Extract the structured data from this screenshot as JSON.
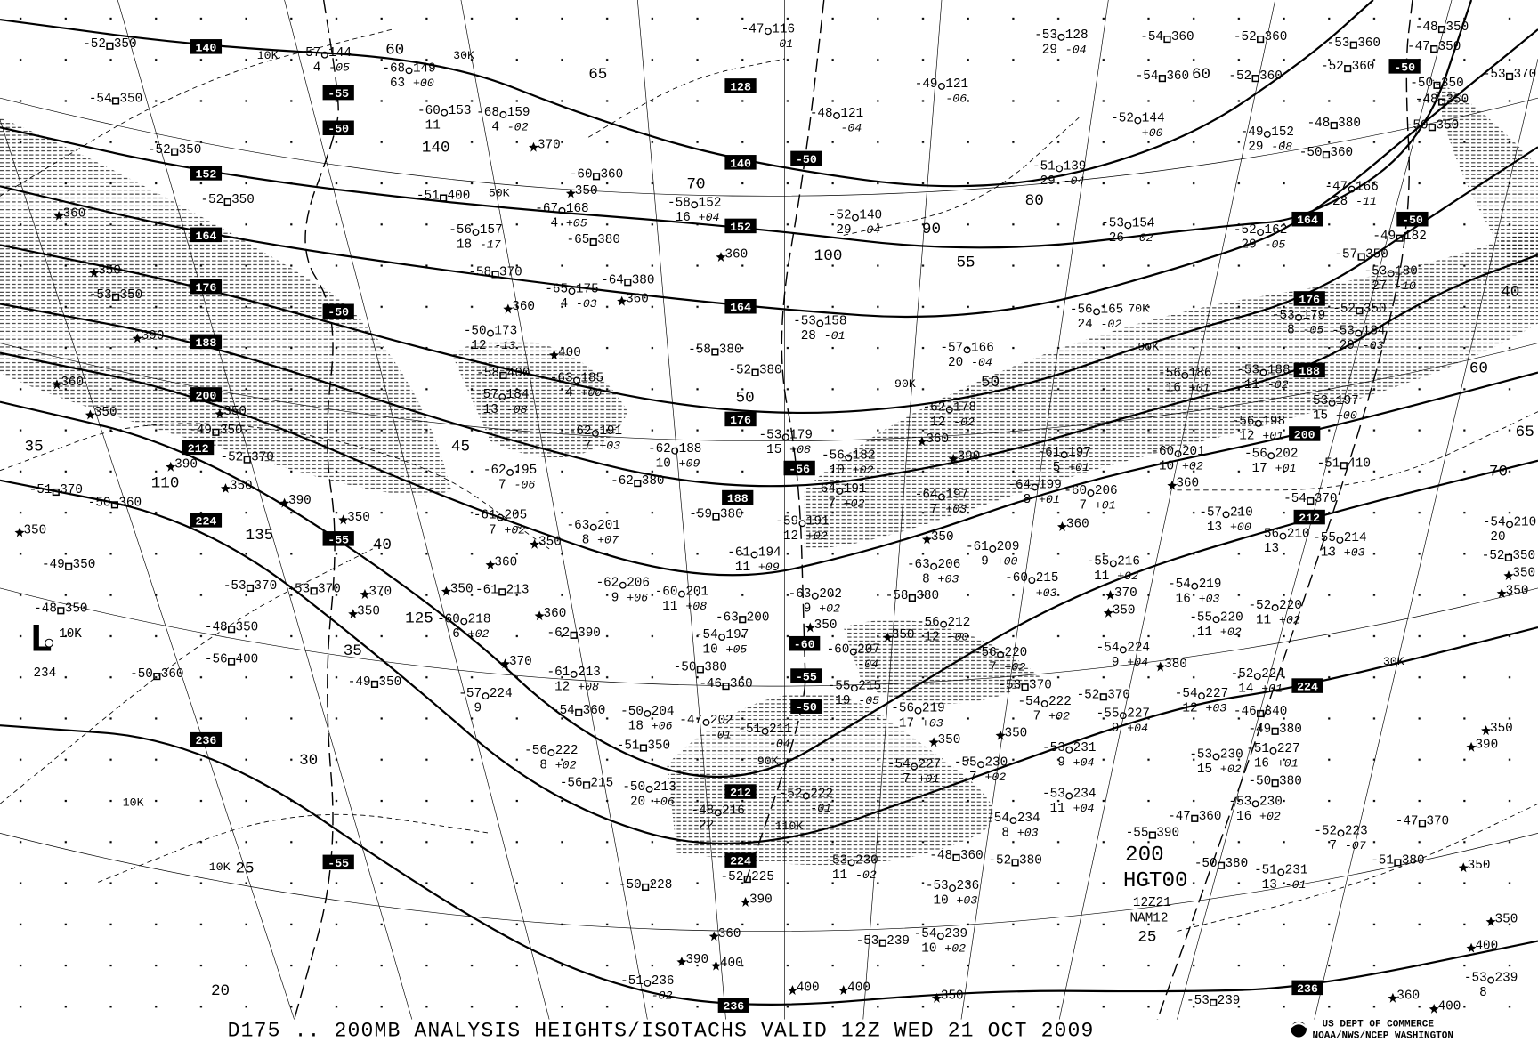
{
  "title": "D175 .. 200MB   ANALYSIS  HEIGHTS/ISOTACHS VALID 12Z WED 21 OCT 2009",
  "product_label": {
    "level": "200",
    "product": "HGT00",
    "time": "12Z21",
    "model": "NAM12"
  },
  "agency": {
    "line1": "US DEPT OF COMMERCE",
    "line2": "NOAA/NWS/NCEP WASHINGTON",
    "logo": "noaa-logo"
  },
  "low_center": {
    "symbol": "L",
    "speed": "10K",
    "height": "234"
  },
  "boxed_heights": [
    "140",
    "152",
    "164",
    "176",
    "188",
    "200",
    "212",
    "224",
    "236",
    "128",
    "140",
    "152",
    "164",
    "176",
    "188",
    "212",
    "224",
    "236",
    "164",
    "176",
    "188",
    "200",
    "212",
    "224",
    "236"
  ],
  "boxed_temps": [
    "-55",
    "-50",
    "-50",
    "-55",
    "-55",
    "-50",
    "-56",
    "-60",
    "-55",
    "-50",
    "-50",
    "-50"
  ],
  "isotach_labels": [
    "65",
    "60",
    "140",
    "100",
    "90",
    "55",
    "125",
    "135",
    "40",
    "35",
    "30",
    "25",
    "20",
    "45",
    "50",
    "70",
    "80",
    "60",
    "65",
    "70",
    "40",
    "25",
    "35",
    "110",
    "60",
    "50"
  ],
  "wind_labels": [
    "30K",
    "50K",
    "10K",
    "70K",
    "90K",
    "90K",
    "90K",
    "110K",
    "10K",
    "10K",
    "30K"
  ],
  "stations": [
    {
      "t": "-52",
      "h": "350"
    },
    {
      "t": "-54",
      "h": "350"
    },
    {
      "t": "-52",
      "h": "350"
    },
    {
      "t": "-52",
      "h": "350"
    },
    {
      "h": "360"
    },
    {
      "h": "350"
    },
    {
      "t": "-53",
      "h": "350"
    },
    {
      "h": "390"
    },
    {
      "h": "360"
    },
    {
      "h": "350"
    },
    {
      "h": "350"
    },
    {
      "t": "-49",
      "h": "350"
    },
    {
      "t": "-52",
      "h": "370"
    },
    {
      "h": "390"
    },
    {
      "h": "350"
    },
    {
      "t": "-51",
      "h": "370"
    },
    {
      "t": "-50",
      "h": "360"
    },
    {
      "h": "390"
    },
    {
      "h": "350"
    },
    {
      "h": "350"
    },
    {
      "t": "-49",
      "h": "350"
    },
    {
      "t": "-53",
      "h": "370"
    },
    {
      "t": "-53",
      "h": "370"
    },
    {
      "h": "370"
    },
    {
      "h": "350"
    },
    {
      "t": "-48",
      "h": "350"
    },
    {
      "t": "-48",
      "h": "350"
    },
    {
      "t": "-56",
      "h": "400"
    },
    {
      "t": "-50",
      "h": "360"
    },
    {
      "t": "-49",
      "h": "350"
    },
    {
      "t": "-57",
      "h": "144",
      "dd": "4",
      "c": "-05"
    },
    {
      "t": "-68",
      "h": "149",
      "dd": "63",
      "c": "+00"
    },
    {
      "t": "-60",
      "h": "153",
      "dd": "11"
    },
    {
      "t": "-68",
      "h": "159",
      "dd": "4",
      "c": "-02"
    },
    {
      "t": "-51",
      "h": "400"
    },
    {
      "t": "-56",
      "h": "157",
      "dd": "18",
      "c": "-17"
    },
    {
      "t": "-58",
      "h": "370"
    },
    {
      "h": "360"
    },
    {
      "t": "-50",
      "h": "173",
      "dd": "12",
      "c": "-13"
    },
    {
      "t": "-58",
      "h": "400"
    },
    {
      "t": "-57",
      "h": "184",
      "dd": "13",
      "c": "-08"
    },
    {
      "t": "-63",
      "h": "185",
      "dd": "4",
      "c": "+00"
    },
    {
      "t": "-67",
      "h": "168",
      "dd": "4",
      "c": "+05"
    },
    {
      "t": "-65",
      "h": "380"
    },
    {
      "t": "-60",
      "h": "360"
    },
    {
      "h": "350"
    },
    {
      "h": "370"
    },
    {
      "t": "-64",
      "h": "380"
    },
    {
      "t": "-65",
      "h": "175",
      "dd": "4",
      "c": "-03"
    },
    {
      "h": "360"
    },
    {
      "h": "400"
    },
    {
      "t": "-62",
      "h": "191",
      "dd": "7",
      "c": "+03"
    },
    {
      "t": "-62",
      "h": "195",
      "dd": "7",
      "c": "-06"
    },
    {
      "t": "-62",
      "h": "380"
    },
    {
      "t": "-61",
      "h": "205",
      "dd": "7",
      "c": "+02"
    },
    {
      "h": "350"
    },
    {
      "h": "360"
    },
    {
      "t": "-61",
      "h": "213"
    },
    {
      "h": "350"
    },
    {
      "t": "-60",
      "h": "218",
      "dd": "6",
      "c": "+02"
    },
    {
      "t": "-63",
      "h": "201",
      "dd": "8",
      "c": "+07"
    },
    {
      "t": "-62",
      "h": "206",
      "dd": "9",
      "c": "+06"
    },
    {
      "t": "-62",
      "h": "390"
    },
    {
      "h": "370"
    },
    {
      "t": "-61",
      "h": "213",
      "dd": "12",
      "c": "+08"
    },
    {
      "t": "-54",
      "h": "360"
    },
    {
      "t": "-57",
      "h": "224",
      "dd": "9"
    },
    {
      "h": "360"
    },
    {
      "t": "-60",
      "h": "201",
      "dd": "11",
      "c": "+08"
    },
    {
      "t": "-62",
      "h": "188",
      "dd": "10",
      "c": "+09"
    },
    {
      "t": "-53",
      "h": "179",
      "dd": "15",
      "c": "+08"
    },
    {
      "t": "-59",
      "h": "380"
    },
    {
      "t": "-61",
      "h": "194",
      "dd": "11",
      "c": "+09"
    },
    {
      "t": "-59",
      "h": "191",
      "dd": "12",
      "c": "+02"
    },
    {
      "t": "-54",
      "h": "197",
      "dd": "10",
      "c": "+05"
    },
    {
      "t": "-50",
      "h": "380"
    },
    {
      "t": "-46",
      "h": "360"
    },
    {
      "t": "-63",
      "h": "200"
    },
    {
      "h": "350"
    },
    {
      "t": "-63",
      "h": "202",
      "dd": "9",
      "c": "+02"
    },
    {
      "t": "-64",
      "h": "191",
      "dd": "7",
      "c": "+02"
    },
    {
      "t": "-56",
      "h": "182",
      "dd": "10",
      "c": "+02"
    },
    {
      "t": "-58",
      "h": "380"
    },
    {
      "t": "-52",
      "h": "380"
    },
    {
      "h": "360"
    },
    {
      "t": "-58",
      "h": "152",
      "dd": "16",
      "c": "+04"
    },
    {
      "t": "-47",
      "h": "116",
      "c": "-01"
    },
    {
      "t": "-48",
      "h": "121",
      "c": "-04"
    },
    {
      "t": "-52",
      "h": "140",
      "dd": "29",
      "c": "-04"
    },
    {
      "t": "-53",
      "h": "158",
      "dd": "28",
      "c": "-01"
    },
    {
      "t": "-49",
      "h": "121",
      "c": "-06"
    },
    {
      "t": "-53",
      "h": "128",
      "dd": "29",
      "c": "-04"
    },
    {
      "t": "-54",
      "h": "360"
    },
    {
      "t": "-54",
      "h": "360"
    },
    {
      "t": "-52",
      "h": "360"
    },
    {
      "t": "-52",
      "h": "360"
    },
    {
      "t": "-53",
      "h": "360"
    },
    {
      "t": "-52",
      "h": "360"
    },
    {
      "t": "-48",
      "h": "350"
    },
    {
      "t": "-47",
      "h": "350"
    },
    {
      "t": "-50",
      "h": "350"
    },
    {
      "t": "-48",
      "h": "350"
    },
    {
      "t": "-50",
      "h": "350"
    },
    {
      "t": "-53",
      "h": "370"
    },
    {
      "t": "-52",
      "h": "144",
      "c": "+00"
    },
    {
      "t": "-51",
      "h": "139",
      "dd": "29",
      "c": "-04"
    },
    {
      "t": "-49",
      "h": "152",
      "dd": "29",
      "c": "-08"
    },
    {
      "t": "-48",
      "h": "380"
    },
    {
      "t": "-50",
      "h": "360"
    },
    {
      "t": "-47",
      "h": "166",
      "dd": "28",
      "c": "-11"
    },
    {
      "t": "-53",
      "h": "154",
      "dd": "26",
      "c": "-02"
    },
    {
      "t": "-52",
      "h": "162",
      "dd": "29",
      "c": "-05"
    },
    {
      "t": "-49",
      "h": "182"
    },
    {
      "t": "-57",
      "h": "350"
    },
    {
      "t": "-53",
      "h": "180",
      "dd": "27",
      "c": "-10"
    },
    {
      "t": "-52",
      "h": "350"
    },
    {
      "t": "-53",
      "h": "179",
      "dd": "8",
      "c": "-05"
    },
    {
      "t": "-53",
      "h": "184",
      "dd": "29",
      "c": "-03"
    },
    {
      "t": "-56",
      "h": "165",
      "dd": "24",
      "c": "-02"
    },
    {
      "t": "-57",
      "h": "166",
      "dd": "20",
      "c": "-04"
    },
    {
      "t": "-56",
      "h": "186",
      "dd": "16",
      "c": "+01"
    },
    {
      "t": "-53",
      "h": "188",
      "dd": "11",
      "c": "-02"
    },
    {
      "t": "-53",
      "h": "197",
      "dd": "15",
      "c": "+00"
    },
    {
      "t": "-56",
      "h": "198",
      "dd": "12",
      "c": "+01"
    },
    {
      "t": "-56",
      "h": "202",
      "dd": "17",
      "c": "+01"
    },
    {
      "t": "-51",
      "h": "410"
    },
    {
      "t": "-54",
      "h": "370"
    },
    {
      "t": "-54",
      "h": "210",
      "dd": "20"
    },
    {
      "t": "-52",
      "h": "350"
    },
    {
      "h": "360"
    },
    {
      "t": "-62",
      "h": "178",
      "dd": "12",
      "c": "-02"
    },
    {
      "h": "390"
    },
    {
      "t": "-61",
      "h": "197",
      "dd": "5",
      "c": "+01"
    },
    {
      "t": "-64",
      "h": "199",
      "dd": "8",
      "c": "+01"
    },
    {
      "t": "-60",
      "h": "206",
      "dd": "7",
      "c": "+01"
    },
    {
      "h": "360"
    },
    {
      "h": "360"
    },
    {
      "t": "-60",
      "h": "201",
      "dd": "10",
      "c": "+02"
    },
    {
      "t": "-57",
      "h": "210",
      "dd": "13",
      "c": "+00"
    },
    {
      "t": "-56",
      "h": "210",
      "dd": "13"
    },
    {
      "t": "-55",
      "h": "214",
      "dd": "13",
      "c": "+03"
    },
    {
      "t": "-64",
      "h": "197",
      "dd": "7",
      "c": "+03"
    },
    {
      "h": "350"
    },
    {
      "t": "-63",
      "h": "206",
      "dd": "8",
      "c": "+03"
    },
    {
      "t": "-61",
      "h": "209",
      "dd": "9",
      "c": "+00"
    },
    {
      "t": "-60",
      "h": "215",
      "c": "+03"
    },
    {
      "t": "-58",
      "h": "380"
    },
    {
      "t": "-55",
      "h": "216",
      "dd": "11",
      "c": "+02"
    },
    {
      "h": "370"
    },
    {
      "t": "-54",
      "h": "219",
      "dd": "16",
      "c": "+03"
    },
    {
      "t": "-55",
      "h": "220",
      "dd": "11",
      "c": "+02"
    },
    {
      "t": "-52",
      "h": "220",
      "dd": "11",
      "c": "+02"
    },
    {
      "h": "350"
    },
    {
      "t": "-56",
      "h": "212",
      "dd": "12",
      "c": "+00"
    },
    {
      "t": "-60",
      "h": "207",
      "c": "-04"
    },
    {
      "t": "-55",
      "h": "215",
      "dd": "19",
      "c": "-05"
    },
    {
      "h": "350"
    },
    {
      "t": "-56",
      "h": "219",
      "dd": "17",
      "c": "+03"
    },
    {
      "t": "-56",
      "h": "220",
      "dd": "7",
      "c": "+02"
    },
    {
      "t": "-53",
      "h": "370"
    },
    {
      "t": "-54",
      "h": "224",
      "dd": "9",
      "c": "+04"
    },
    {
      "h": "380"
    },
    {
      "t": "-54",
      "h": "227",
      "dd": "12",
      "c": "+03"
    },
    {
      "t": "-52",
      "h": "224",
      "dd": "14",
      "c": "+01"
    },
    {
      "t": "-46",
      "h": "340"
    },
    {
      "t": "-49",
      "h": "380"
    },
    {
      "t": "-55",
      "h": "227",
      "dd": "9",
      "c": "+04"
    },
    {
      "t": "-54",
      "h": "222",
      "dd": "7",
      "c": "+02"
    },
    {
      "t": "-52",
      "h": "370"
    },
    {
      "h": "350"
    },
    {
      "h": "350"
    },
    {
      "t": "-53",
      "h": "231",
      "dd": "9",
      "c": "+04"
    },
    {
      "t": "-55",
      "h": "230",
      "dd": "7",
      "c": "+02"
    },
    {
      "t": "-54",
      "h": "227",
      "dd": "7",
      "c": "+01"
    },
    {
      "t": "-53",
      "h": "234",
      "dd": "11",
      "c": "+04"
    },
    {
      "t": "-54",
      "h": "234",
      "dd": "8",
      "c": "+03"
    },
    {
      "t": "-53",
      "h": "230",
      "dd": "15",
      "c": "+02"
    },
    {
      "t": "-51",
      "h": "227",
      "dd": "16",
      "c": "+01"
    },
    {
      "t": "-50",
      "h": "380"
    },
    {
      "t": "-53",
      "h": "230",
      "dd": "16",
      "c": "+02"
    },
    {
      "t": "-47",
      "h": "360"
    },
    {
      "t": "-55",
      "h": "390"
    },
    {
      "t": "-52",
      "h": "223",
      "dd": "7",
      "c": "-07"
    },
    {
      "t": "-47",
      "h": "370"
    },
    {
      "t": "-51",
      "h": "380"
    },
    {
      "t": "-51",
      "h": "231",
      "dd": "13",
      "c": "-01"
    },
    {
      "t": "-50",
      "h": "380"
    },
    {
      "t": "-52",
      "h": "380"
    },
    {
      "t": "-48",
      "h": "360"
    },
    {
      "t": "-53",
      "h": "236",
      "dd": "10",
      "c": "+03"
    },
    {
      "t": "-54",
      "h": "239",
      "dd": "10",
      "c": "+02"
    },
    {
      "t": "-53",
      "h": "239"
    },
    {
      "t": "-53",
      "h": "239"
    },
    {
      "t": "-53",
      "h": "239",
      "dd": "8"
    },
    {
      "h": "350"
    },
    {
      "h": "400"
    },
    {
      "h": "350"
    },
    {
      "h": "350"
    },
    {
      "h": "390"
    },
    {
      "h": "350"
    },
    {
      "h": "350"
    },
    {
      "h": "360"
    },
    {
      "h": "400"
    },
    {
      "t": "-51",
      "h": "211",
      "c": "-04"
    },
    {
      "t": "-47",
      "h": "202",
      "c": "-01"
    },
    {
      "t": "-50",
      "h": "204",
      "dd": "18",
      "c": "+06"
    },
    {
      "t": "-51",
      "h": "350"
    },
    {
      "t": "-56",
      "h": "222",
      "dd": "8",
      "c": "+02"
    },
    {
      "t": "-56",
      "h": "215"
    },
    {
      "t": "-50",
      "h": "213",
      "dd": "20",
      "c": "+06"
    },
    {
      "t": "-48",
      "h": "216",
      "dd": "22"
    },
    {
      "t": "-52",
      "h": "222",
      "c": "-01"
    },
    {
      "t": "-53",
      "h": "230",
      "dd": "11",
      "c": "-02"
    },
    {
      "t": "-52",
      "h": "225"
    },
    {
      "h": "390"
    },
    {
      "t": "-50",
      "h": "228"
    },
    {
      "h": "360"
    },
    {
      "h": "400"
    },
    {
      "h": "390"
    },
    {
      "t": "-51",
      "h": "236",
      "c": "-02"
    },
    {
      "h": "400"
    },
    {
      "h": "400"
    },
    {
      "h": "350"
    }
  ]
}
